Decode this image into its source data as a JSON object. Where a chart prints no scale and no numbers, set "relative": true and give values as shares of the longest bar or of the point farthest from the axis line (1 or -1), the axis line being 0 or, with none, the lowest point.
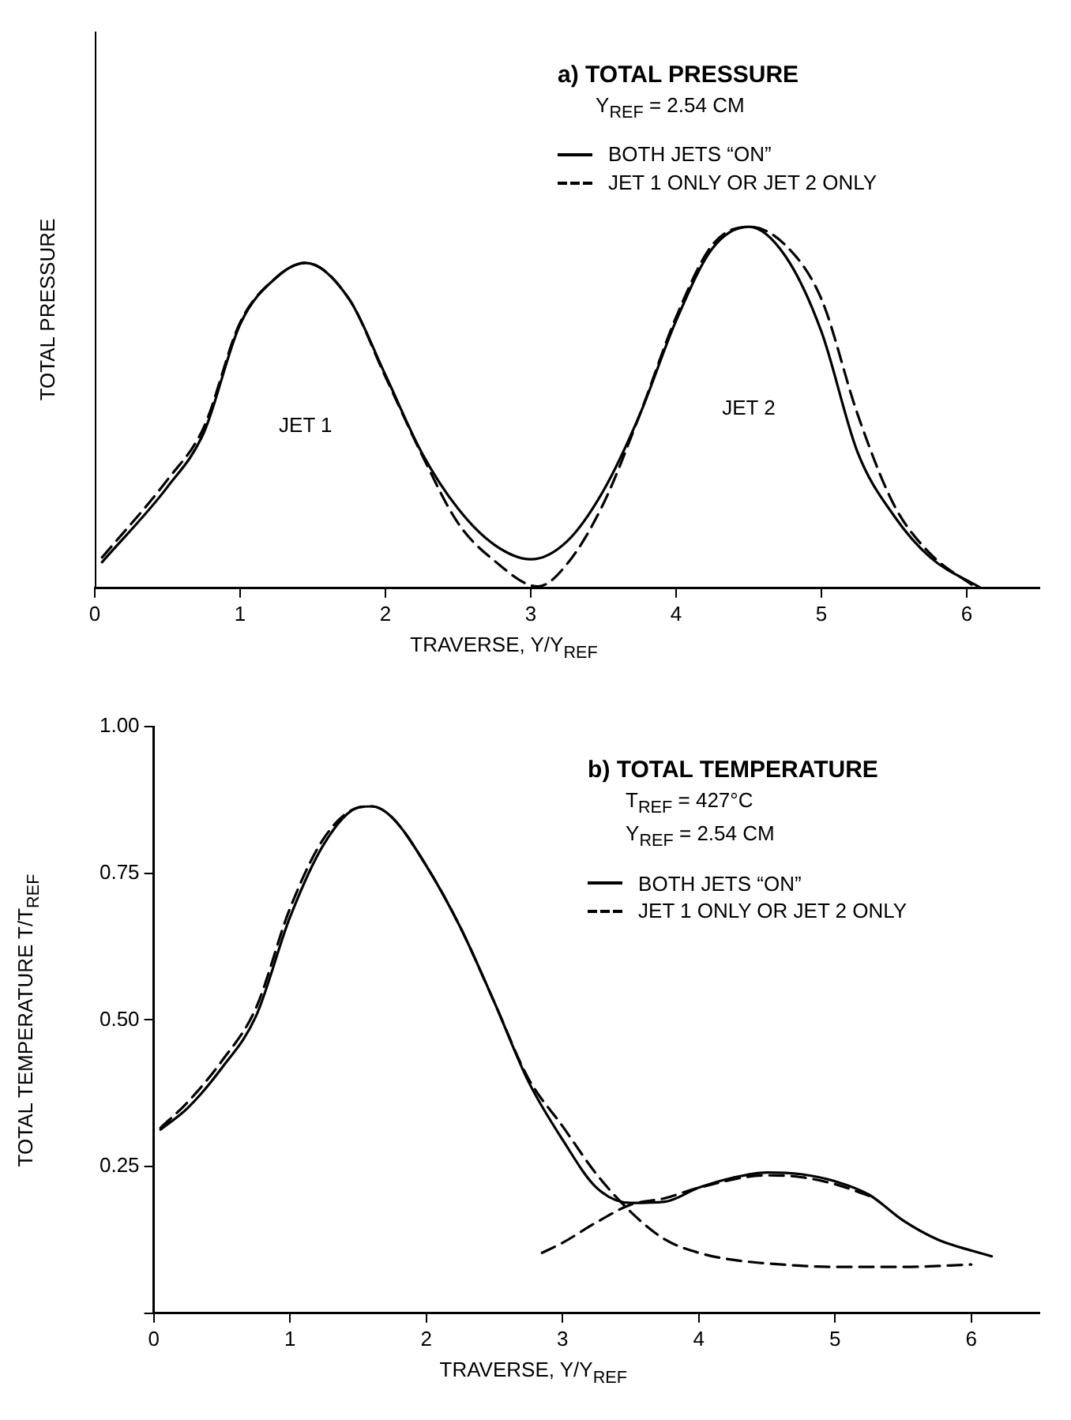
{
  "chart_data": [
    {
      "type": "line",
      "title": "a) TOTAL PRESSURE",
      "subtitle": "Y$_{REF}$ = 2.54 CM",
      "xlabel": "TRAVERSE, Y/Y$_{REF}$",
      "ylabel": "TOTAL PRESSURE",
      "relative": true,
      "xlim": [
        0,
        6.5
      ],
      "xticks": [
        0,
        1,
        2,
        3,
        4,
        5,
        6
      ],
      "grid": false,
      "legend": "top right",
      "marker": "none",
      "annotations": [
        "JET 1",
        "JET 2"
      ],
      "series": [
        {
          "name": "BOTH JETS “ON”",
          "color": "#000000",
          "line_style": "solid",
          "x": [
            0.05,
            0.5,
            0.75,
            1.0,
            1.25,
            1.45,
            1.75,
            2.0,
            2.25,
            2.5,
            2.75,
            3.0,
            3.25,
            3.5,
            3.75,
            4.0,
            4.25,
            4.5,
            4.75,
            5.0,
            5.25,
            5.5,
            5.75,
            6.1
          ],
          "values": [
            0.072,
            0.28,
            0.43,
            0.73,
            0.86,
            0.9,
            0.8,
            0.59,
            0.375,
            0.22,
            0.12,
            0.08,
            0.13,
            0.27,
            0.48,
            0.74,
            0.94,
            1.0,
            0.92,
            0.71,
            0.375,
            0.2,
            0.085,
            0
          ]
        },
        {
          "name": "JET 1 ONLY OR JET 2 ONLY",
          "color": "#000000",
          "line_style": "dashed",
          "x": [
            0.05,
            0.5,
            0.75,
            1.0,
            1.25,
            1.45,
            1.75,
            2.0,
            2.25,
            2.5,
            2.75,
            3.05,
            3.25,
            3.5,
            3.75,
            4.0,
            4.25,
            4.5,
            4.75,
            5.0,
            5.25,
            5.5,
            5.75,
            6.05
          ],
          "values": [
            0.085,
            0.3,
            0.445,
            0.735,
            0.86,
            0.9,
            0.8,
            0.585,
            0.37,
            0.18,
            0.076,
            0.005,
            0.067,
            0.234,
            0.48,
            0.75,
            0.95,
            1.0,
            0.95,
            0.8,
            0.48,
            0.23,
            0.095,
            0.005
          ]
        }
      ]
    },
    {
      "type": "line",
      "title": "b) TOTAL TEMPERATURE",
      "subtitle": "T$_{REF}$ = 427°C",
      "annotations": [
        "Y$_{REF}$ = 2.54 CM"
      ],
      "xlabel": "TRAVERSE, Y/Y$_{REF}$",
      "ylabel": "TOTAL TEMPERATURE  T/T$_{REF}$",
      "xlim": [
        0,
        6.5
      ],
      "xticks": [
        0,
        1,
        2,
        3,
        4,
        5,
        6
      ],
      "ylim": [
        0,
        1
      ],
      "yticks": [
        {
          "value": 0,
          "label": null
        },
        0.25,
        {
          "value": 0.5,
          "label": "0.50"
        },
        0.75,
        {
          "value": 1,
          "label": "1.00"
        }
      ],
      "grid": false,
      "legend": "top right",
      "marker": "none",
      "series": [
        {
          "name": "BOTH JETS “ON”",
          "color": "#000000",
          "line_style": "solid",
          "x": [
            0.05,
            0.25,
            0.5,
            0.75,
            1.0,
            1.25,
            1.5,
            1.6,
            1.75,
            2.0,
            2.25,
            2.5,
            2.75,
            3.0,
            3.25,
            3.5,
            3.75,
            4.0,
            4.25,
            4.5,
            4.75,
            5.0,
            5.25,
            5.5,
            5.75,
            6.15
          ],
          "values": [
            0.313,
            0.35,
            0.418,
            0.506,
            0.675,
            0.8,
            0.862,
            0.864,
            0.845,
            0.763,
            0.658,
            0.53,
            0.395,
            0.296,
            0.214,
            0.188,
            0.19,
            0.214,
            0.231,
            0.24,
            0.237,
            0.225,
            0.202,
            0.158,
            0.126,
            0.097
          ]
        },
        {
          "name": "JET 1 ONLY OR JET 2 ONLY",
          "color": "#000000",
          "line_style": "dashed",
          "x": [
            0.05,
            0.25,
            0.5,
            0.75,
            1.0,
            1.25,
            1.5,
            1.6,
            1.75,
            2.0,
            2.25,
            2.5,
            2.75,
            3.0,
            3.25,
            3.5,
            3.75,
            4.0,
            4.25,
            4.5,
            5.0,
            5.5,
            6.0
          ],
          "values": [
            0.316,
            0.36,
            0.43,
            0.52,
            0.69,
            0.81,
            0.862,
            0.864,
            0.845,
            0.763,
            0.658,
            0.53,
            0.4,
            0.319,
            0.237,
            0.173,
            0.126,
            0.103,
            0.091,
            0.085,
            0.079,
            0.079,
            0.083
          ]
        },
        {
          "color": "#000000",
          "line_style": "dashed",
          "x": [
            2.85,
            3.0,
            3.25,
            3.5,
            3.75,
            4.0,
            4.5,
            4.75,
            5.0,
            5.25
          ],
          "values": [
            0.103,
            0.12,
            0.155,
            0.185,
            0.196,
            0.214,
            0.235,
            0.232,
            0.22,
            0.2
          ]
        }
      ]
    }
  ]
}
